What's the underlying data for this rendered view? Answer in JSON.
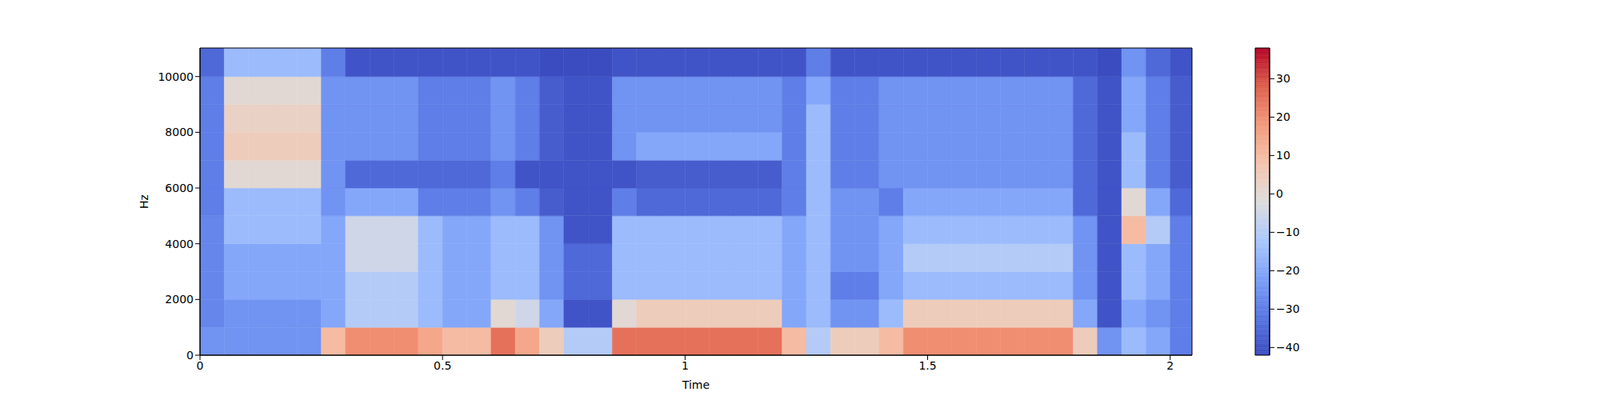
{
  "chart_data": {
    "type": "heatmap",
    "x_label": "Time",
    "y_label": "Hz",
    "xlim": [
      0,
      2.045
    ],
    "ylim": [
      0,
      11025
    ],
    "xticks": [
      0,
      0.5,
      1,
      1.5,
      2
    ],
    "yticks": [
      0,
      2000,
      4000,
      6000,
      8000,
      10000
    ],
    "x_bins": [
      0,
      0.05,
      0.1,
      0.15,
      0.2,
      0.25,
      0.3,
      0.35,
      0.4,
      0.45,
      0.5,
      0.55,
      0.6,
      0.65,
      0.7,
      0.75,
      0.8,
      0.85,
      0.9,
      0.95,
      1.0,
      1.05,
      1.1,
      1.15,
      1.2,
      1.25,
      1.3,
      1.35,
      1.4,
      1.45,
      1.5,
      1.55,
      1.6,
      1.65,
      1.7,
      1.75,
      1.8,
      1.85,
      1.9,
      1.95,
      2.0,
      2.045
    ],
    "y_bins": [
      0,
      1000,
      2000,
      3000,
      4000,
      5000,
      6000,
      7000,
      8000,
      9000,
      10000,
      11025
    ],
    "cells": [
      [
        -25,
        -25,
        -25,
        -25,
        -25,
        10,
        20,
        20,
        20,
        15,
        10,
        10,
        25,
        15,
        5,
        -10,
        -10,
        25,
        25,
        25,
        25,
        25,
        25,
        25,
        10,
        -10,
        5,
        5,
        10,
        20,
        20,
        20,
        20,
        20,
        20,
        20,
        5,
        -25,
        -15,
        -20,
        -30
      ],
      [
        -28,
        -25,
        -25,
        -25,
        -25,
        -20,
        -10,
        -10,
        -10,
        -15,
        -20,
        -20,
        0,
        -5,
        -20,
        -40,
        -40,
        0,
        5,
        5,
        5,
        5,
        5,
        5,
        -20,
        -15,
        -25,
        -25,
        -15,
        5,
        5,
        5,
        5,
        5,
        5,
        5,
        -20,
        -40,
        -20,
        -25,
        -30
      ],
      [
        -28,
        -20,
        -20,
        -20,
        -20,
        -20,
        -10,
        -10,
        -10,
        -15,
        -20,
        -20,
        -15,
        -15,
        -25,
        -35,
        -35,
        -15,
        -15,
        -15,
        -15,
        -15,
        -15,
        -15,
        -20,
        -15,
        -30,
        -30,
        -20,
        -15,
        -15,
        -15,
        -15,
        -15,
        -15,
        -15,
        -25,
        -40,
        -15,
        -20,
        -30
      ],
      [
        -28,
        -20,
        -20,
        -20,
        -20,
        -20,
        -5,
        -5,
        -5,
        -15,
        -20,
        -20,
        -15,
        -15,
        -25,
        -35,
        -35,
        -15,
        -15,
        -15,
        -15,
        -15,
        -15,
        -15,
        -20,
        -15,
        -25,
        -25,
        -20,
        -10,
        -10,
        -10,
        -10,
        -10,
        -10,
        -10,
        -25,
        -40,
        -15,
        -20,
        -30
      ],
      [
        -28,
        -15,
        -15,
        -15,
        -15,
        -20,
        -5,
        -5,
        -5,
        -15,
        -20,
        -20,
        -15,
        -15,
        -25,
        -40,
        -40,
        -15,
        -15,
        -15,
        -15,
        -15,
        -15,
        -15,
        -20,
        -15,
        -25,
        -25,
        -20,
        -15,
        -15,
        -15,
        -15,
        -15,
        -15,
        -15,
        -25,
        -40,
        10,
        -10,
        -30
      ],
      [
        -30,
        -15,
        -15,
        -15,
        -15,
        -25,
        -20,
        -20,
        -20,
        -30,
        -30,
        -30,
        -25,
        -30,
        -38,
        -40,
        -40,
        -30,
        -35,
        -35,
        -35,
        -35,
        -35,
        -35,
        -30,
        -15,
        -25,
        -25,
        -30,
        -20,
        -20,
        -20,
        -20,
        -20,
        -20,
        -20,
        -35,
        -40,
        0,
        -20,
        -35
      ],
      [
        -30,
        0,
        0,
        0,
        0,
        -25,
        -35,
        -35,
        -35,
        -35,
        -35,
        -35,
        -30,
        -40,
        -40,
        -40,
        -40,
        -40,
        -38,
        -38,
        -38,
        -38,
        -38,
        -38,
        -30,
        -15,
        -30,
        -30,
        -25,
        -25,
        -25,
        -25,
        -25,
        -25,
        -25,
        -25,
        -35,
        -40,
        -15,
        -30,
        -38
      ],
      [
        -30,
        5,
        5,
        5,
        5,
        -25,
        -25,
        -25,
        -25,
        -30,
        -30,
        -30,
        -25,
        -30,
        -38,
        -40,
        -40,
        -25,
        -20,
        -20,
        -20,
        -20,
        -20,
        -20,
        -30,
        -15,
        -30,
        -30,
        -25,
        -25,
        -25,
        -25,
        -25,
        -25,
        -25,
        -25,
        -35,
        -40,
        -15,
        -30,
        -38
      ],
      [
        -30,
        3,
        3,
        3,
        3,
        -25,
        -25,
        -25,
        -25,
        -30,
        -30,
        -30,
        -25,
        -30,
        -38,
        -40,
        -40,
        -25,
        -25,
        -25,
        -25,
        -25,
        -25,
        -25,
        -30,
        -15,
        -30,
        -30,
        -25,
        -25,
        -25,
        -25,
        -25,
        -25,
        -25,
        -25,
        -35,
        -40,
        -20,
        -30,
        -38
      ],
      [
        -30,
        0,
        0,
        0,
        0,
        -25,
        -25,
        -25,
        -25,
        -30,
        -30,
        -30,
        -25,
        -30,
        -38,
        -40,
        -40,
        -25,
        -25,
        -25,
        -25,
        -25,
        -25,
        -25,
        -30,
        -20,
        -30,
        -30,
        -25,
        -25,
        -25,
        -25,
        -25,
        -25,
        -25,
        -25,
        -35,
        -40,
        -20,
        -30,
        -38
      ],
      [
        -35,
        -15,
        -15,
        -15,
        -15,
        -30,
        -40,
        -40,
        -40,
        -40,
        -40,
        -40,
        -40,
        -40,
        -42,
        -42,
        -42,
        -40,
        -40,
        -40,
        -40,
        -40,
        -40,
        -40,
        -40,
        -30,
        -40,
        -40,
        -40,
        -40,
        -40,
        -40,
        -40,
        -40,
        -40,
        -40,
        -40,
        -42,
        -25,
        -35,
        -40
      ]
    ],
    "colorbar": {
      "range": [
        -42,
        38
      ],
      "ticks": [
        {
          "value": -40,
          "label": "−40"
        },
        {
          "value": -30,
          "label": "−30"
        },
        {
          "value": -20,
          "label": "−20"
        },
        {
          "value": -10,
          "label": "−10"
        },
        0,
        10,
        20,
        30
      ]
    }
  }
}
